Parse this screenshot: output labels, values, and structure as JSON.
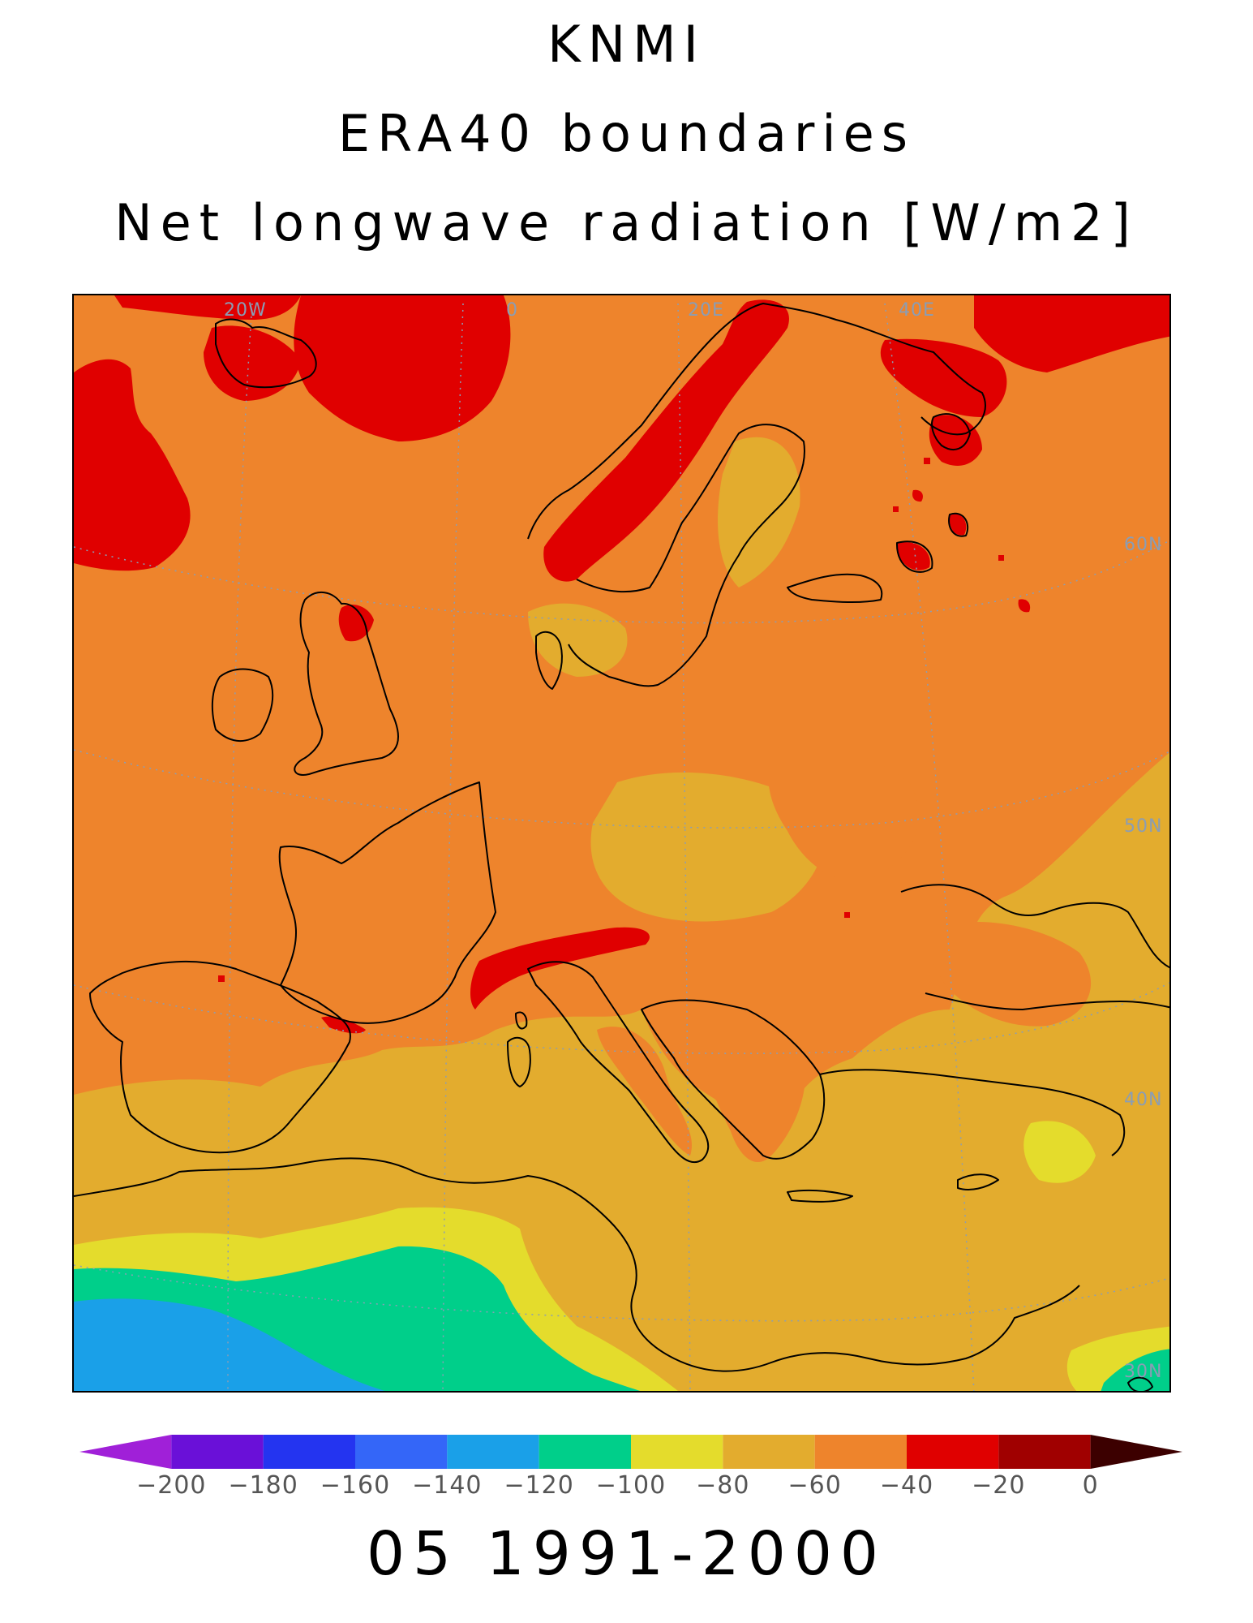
{
  "title": {
    "line1": "KNMI",
    "line2": "ERA40 boundaries",
    "line3": "Net longwave radiation [W/m2]"
  },
  "map": {
    "longitude_labels": [
      "20W",
      "0",
      "20E",
      "40E"
    ],
    "latitude_labels": [
      "60N",
      "50N",
      "40N",
      "30N"
    ],
    "field": "Net longwave radiation",
    "units": "W/m2",
    "background_color": "#ee842c"
  },
  "colorbar": {
    "levels": [
      -200,
      -180,
      -160,
      -140,
      -120,
      -100,
      -80,
      -60,
      -40,
      -20,
      0
    ],
    "tick_labels": [
      "-200",
      "-180",
      "-160",
      "-140",
      "-120",
      "-100",
      "-80",
      "-60",
      "-40",
      "-20",
      "0"
    ],
    "colors": [
      "#a020d8",
      "#6a10d8",
      "#2434f0",
      "#3466f8",
      "#1aa0e8",
      "#00cf8a",
      "#e4dc2c",
      "#e3ac2e",
      "#ee842c",
      "#e00000",
      "#a00000",
      "#3c0000"
    ],
    "under_color": "#a020d8",
    "over_color": "#3c0000"
  },
  "footer": {
    "period": "05 1991-2000"
  }
}
